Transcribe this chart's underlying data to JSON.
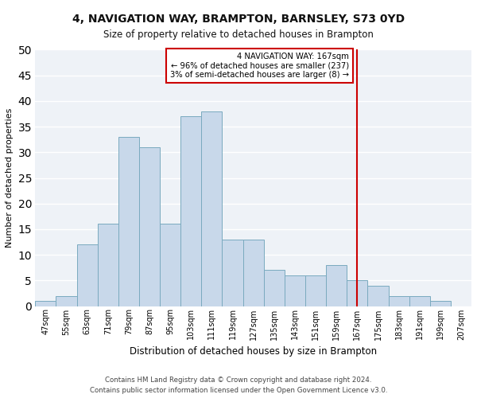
{
  "title_line1": "4, NAVIGATION WAY, BRAMPTON, BARNSLEY, S73 0YD",
  "title_line2": "Size of property relative to detached houses in Brampton",
  "xlabel": "Distribution of detached houses by size in Brampton",
  "ylabel": "Number of detached properties",
  "footer_line1": "Contains HM Land Registry data © Crown copyright and database right 2024.",
  "footer_line2": "Contains public sector information licensed under the Open Government Licence v3.0.",
  "bar_labels": [
    "47sqm",
    "55sqm",
    "63sqm",
    "71sqm",
    "79sqm",
    "87sqm",
    "95sqm",
    "103sqm",
    "111sqm",
    "119sqm",
    "127sqm",
    "135sqm",
    "143sqm",
    "151sqm",
    "159sqm",
    "167sqm",
    "175sqm",
    "183sqm",
    "191sqm",
    "199sqm",
    "207sqm"
  ],
  "bar_values": [
    1,
    2,
    12,
    16,
    33,
    31,
    16,
    37,
    38,
    13,
    13,
    7,
    6,
    6,
    8,
    5,
    4,
    2,
    2,
    1,
    0
  ],
  "bar_color": "#c8d8ea",
  "bar_edge_color": "#7aaabf",
  "property_bin_index": 15,
  "annotation_line1": "4 NAVIGATION WAY: 167sqm",
  "annotation_line2": "← 96% of detached houses are smaller (237)",
  "annotation_line3": "3% of semi-detached houses are larger (8) →",
  "vline_color": "#cc0000",
  "annotation_box_edge_color": "#cc0000",
  "ylim": [
    0,
    50
  ],
  "yticks": [
    0,
    5,
    10,
    15,
    20,
    25,
    30,
    35,
    40,
    45,
    50
  ],
  "background_color": "#eef2f7",
  "fig_background_color": "#ffffff",
  "grid_color": "#ffffff"
}
